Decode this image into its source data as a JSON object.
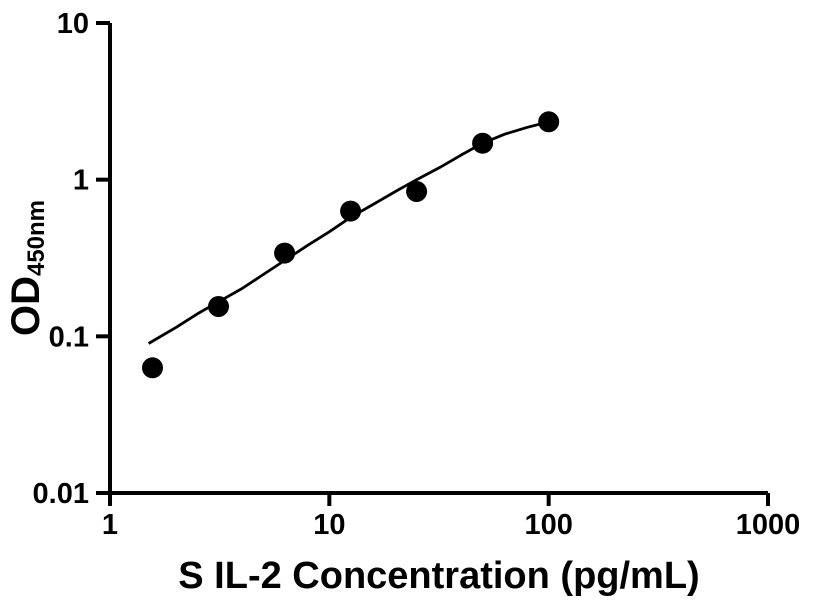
{
  "figure": {
    "background_color": "#ffffff",
    "ink_color": "#000000"
  },
  "chart_data": {
    "type": "scatter",
    "title": "",
    "xlabel": "S IL-2 Concentration (pg/mL)",
    "ylabel": "OD",
    "ylabel_subscript": "450nm",
    "x_scale": "log",
    "y_scale": "log",
    "xlim": [
      1,
      1000
    ],
    "ylim": [
      0.01,
      10
    ],
    "grid": false,
    "legend": null,
    "x_ticks": [
      {
        "value": 1,
        "label": "1"
      },
      {
        "value": 10,
        "label": "10"
      },
      {
        "value": 100,
        "label": "100"
      },
      {
        "value": 1000,
        "label": "1000"
      }
    ],
    "y_ticks": [
      {
        "value": 0.01,
        "label": "0.01"
      },
      {
        "value": 0.1,
        "label": "0.1"
      },
      {
        "value": 1,
        "label": "1"
      },
      {
        "value": 10,
        "label": "10"
      }
    ],
    "series": [
      {
        "name": "standard-points",
        "type": "scatter",
        "marker": "filled-circle",
        "color": "#000000",
        "x": [
          1.5625,
          3.125,
          6.25,
          12.5,
          25,
          50,
          100
        ],
        "y": [
          0.063,
          0.155,
          0.34,
          0.63,
          0.84,
          1.71,
          2.34
        ]
      },
      {
        "name": "fit-curve",
        "type": "line",
        "color": "#000000",
        "x": [
          1.5,
          2.0,
          2.5,
          3.125,
          4,
          5,
          6.25,
          8,
          10,
          12.5,
          16,
          20,
          25,
          32,
          40,
          50,
          63,
          80,
          100
        ],
        "y": [
          0.09,
          0.114,
          0.139,
          0.166,
          0.202,
          0.248,
          0.305,
          0.382,
          0.465,
          0.575,
          0.7,
          0.84,
          1.0,
          1.2,
          1.44,
          1.71,
          1.95,
          2.16,
          2.34
        ]
      }
    ]
  }
}
